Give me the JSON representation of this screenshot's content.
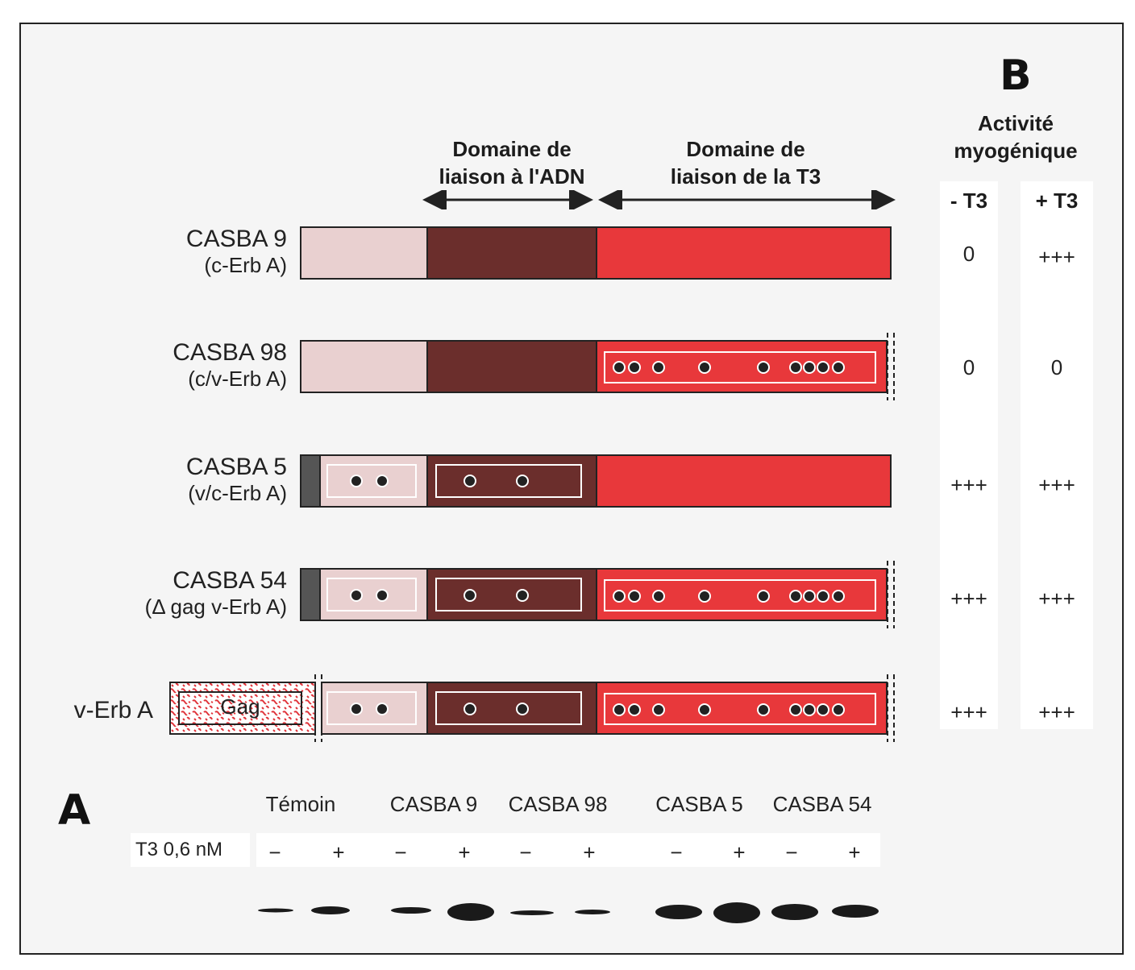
{
  "panel_labels": {
    "a": "A",
    "b": "B"
  },
  "domains": {
    "dna_binding": "Domaine de\nliaison à l'ADN",
    "t3_binding": "Domaine de\nliaison de la T3"
  },
  "activity": {
    "title": "Activité\nmyogénique",
    "col_minus": "- T3",
    "col_plus": "+ T3"
  },
  "constructs": [
    {
      "name": "CASBA 9",
      "sub": "(c-Erb A)",
      "minus_t3": "0",
      "plus_t3": "+++"
    },
    {
      "name": "CASBA 98",
      "sub": "(c/v-Erb A)",
      "minus_t3": "0",
      "plus_t3": "0"
    },
    {
      "name": "CASBA 5",
      "sub": "(v/c-Erb A)",
      "minus_t3": "+++",
      "plus_t3": "+++"
    },
    {
      "name": "CASBA 54",
      "sub": "(Δ gag v-Erb A)",
      "minus_t3": "+++",
      "plus_t3": "+++"
    },
    {
      "name": "v-Erb A",
      "sub": "",
      "minus_t3": "+++",
      "plus_t3": "+++"
    }
  ],
  "gag_label": "Gag",
  "blot": {
    "lanes": [
      "Témoin",
      "CASBA 9",
      "CASBA 98",
      "CASBA 5",
      "CASBA 54"
    ],
    "treatment_label": "T3 0,6 nM",
    "signs": [
      "−",
      "+",
      "−",
      "+",
      "−",
      "+",
      "−",
      "+",
      "−",
      "+"
    ]
  },
  "colors": {
    "light_pink": "#e9d0d0",
    "dark_brown": "#6b2e2c",
    "red": "#e8383b",
    "gray_cap": "#555555",
    "band": "#1a1a1a"
  }
}
